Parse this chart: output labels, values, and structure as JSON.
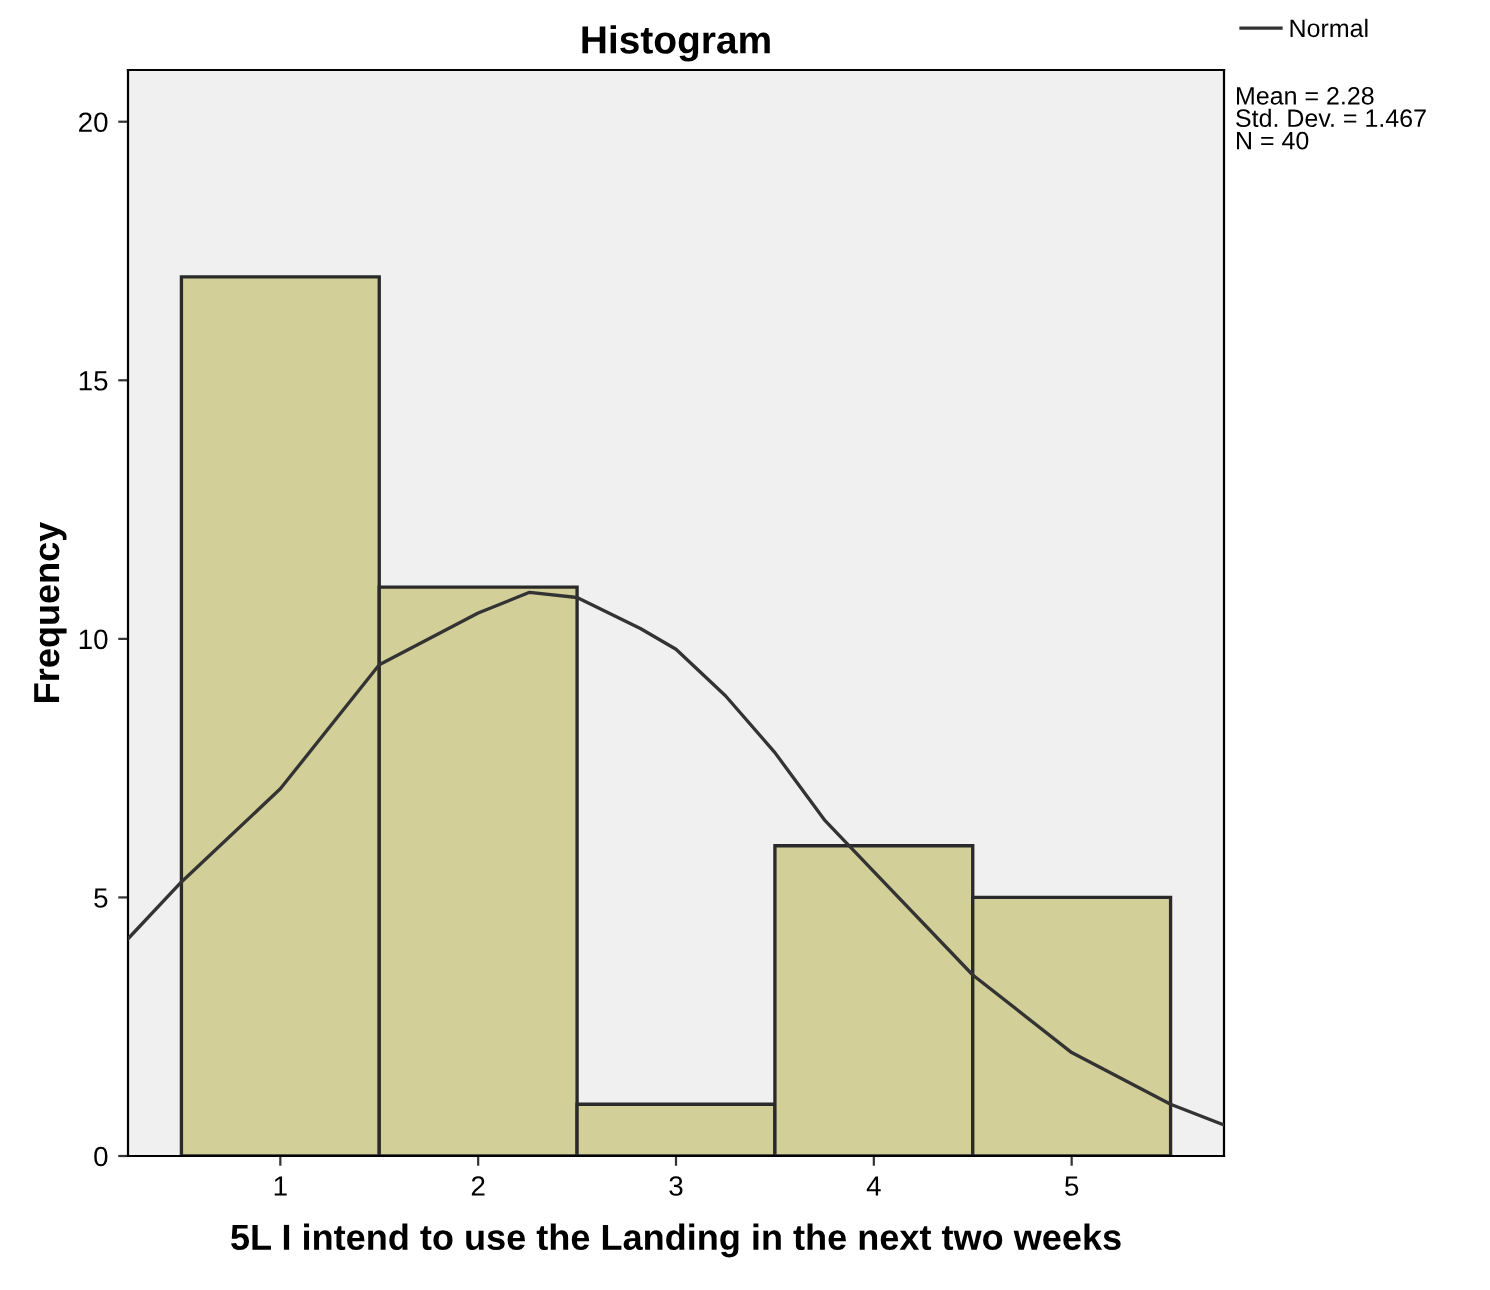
{
  "chart_data": {
    "type": "histogram",
    "title": "Histogram",
    "xlabel": "5L I intend to use the Landing in the next two weeks",
    "ylabel": "Frequency",
    "bins": [
      0.5,
      1.5,
      2.5,
      3.5,
      4.5,
      5.5
    ],
    "values": [
      17,
      11,
      1,
      6,
      5
    ],
    "color": "#d3cf98",
    "series": [
      {
        "name": "Normal",
        "type": "line",
        "color": "#333333",
        "x": [
          0.23,
          0.5,
          1,
          1.5,
          2,
          2.26,
          2.5,
          2.82,
          3,
          3.25,
          3.5,
          3.75,
          4,
          4.5,
          5,
          5.5,
          5.77
        ],
        "values": [
          4.2,
          5.3,
          7.1,
          9.5,
          10.5,
          10.9,
          10.8,
          10.2,
          9.8,
          8.9,
          7.8,
          6.5,
          5.5,
          3.5,
          2.0,
          1.0,
          0.6
        ]
      }
    ],
    "xlim": [
      0.23,
      5.77
    ],
    "xticks": [
      1,
      2,
      3,
      4,
      5
    ],
    "ylim": [
      0,
      21
    ],
    "yticks": [
      0,
      5,
      10,
      15,
      20
    ],
    "grid": false,
    "legend": "top right",
    "annotations": [
      "Mean = 2.28\nStd. Dev. = 1.467\nN = 40"
    ]
  }
}
